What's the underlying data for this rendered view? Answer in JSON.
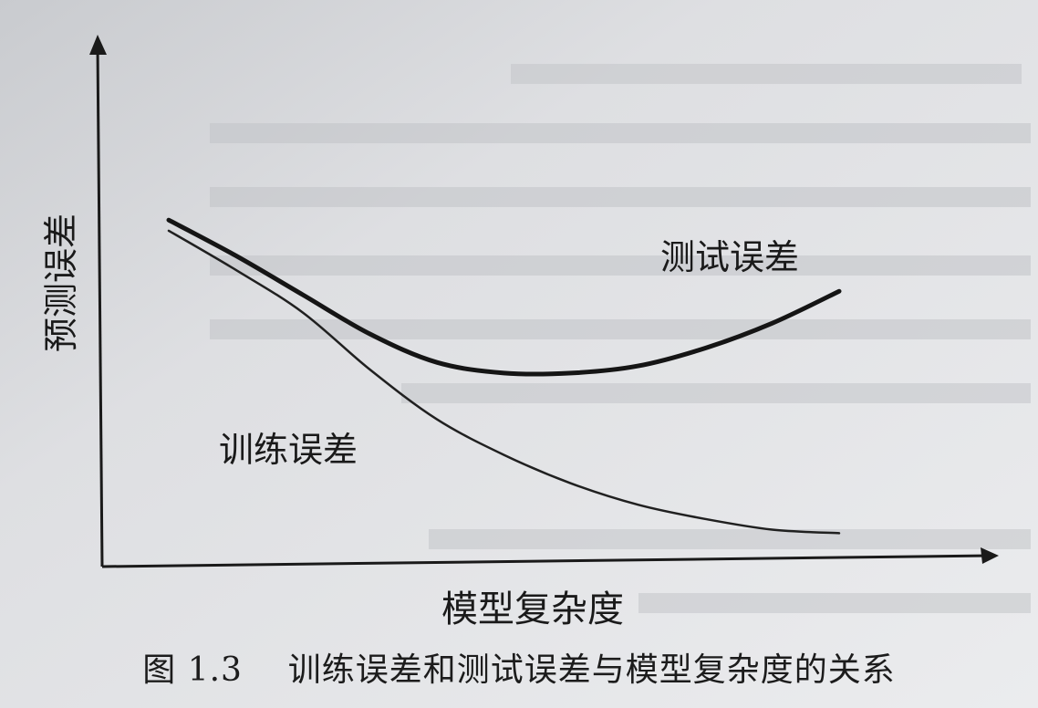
{
  "chart_data": {
    "type": "line",
    "title": "",
    "xlabel": "模型复杂度",
    "ylabel": "预测误差",
    "grid": false,
    "legend": "none",
    "xlim": [
      0,
      10
    ],
    "ylim": [
      0,
      10
    ],
    "series": [
      {
        "name": "测试误差",
        "stroke": "#151515",
        "x": [
          0,
          1,
          2,
          3,
          4,
          5,
          6,
          7,
          8,
          9,
          10
        ],
        "y": [
          9.2,
          8.2,
          7.1,
          6.0,
          5.2,
          4.9,
          4.9,
          5.1,
          5.6,
          6.3,
          7.2
        ]
      },
      {
        "name": "训练误差",
        "stroke": "#202020",
        "x": [
          0,
          1,
          2,
          3,
          4,
          5,
          6,
          7,
          8,
          9,
          10
        ],
        "y": [
          8.9,
          7.8,
          6.6,
          5.0,
          3.6,
          2.6,
          1.8,
          1.2,
          0.8,
          0.5,
          0.4
        ]
      }
    ]
  },
  "caption": {
    "figure_no": "图 1.3",
    "text": "训练误差和测试误差与模型复杂度的关系"
  }
}
